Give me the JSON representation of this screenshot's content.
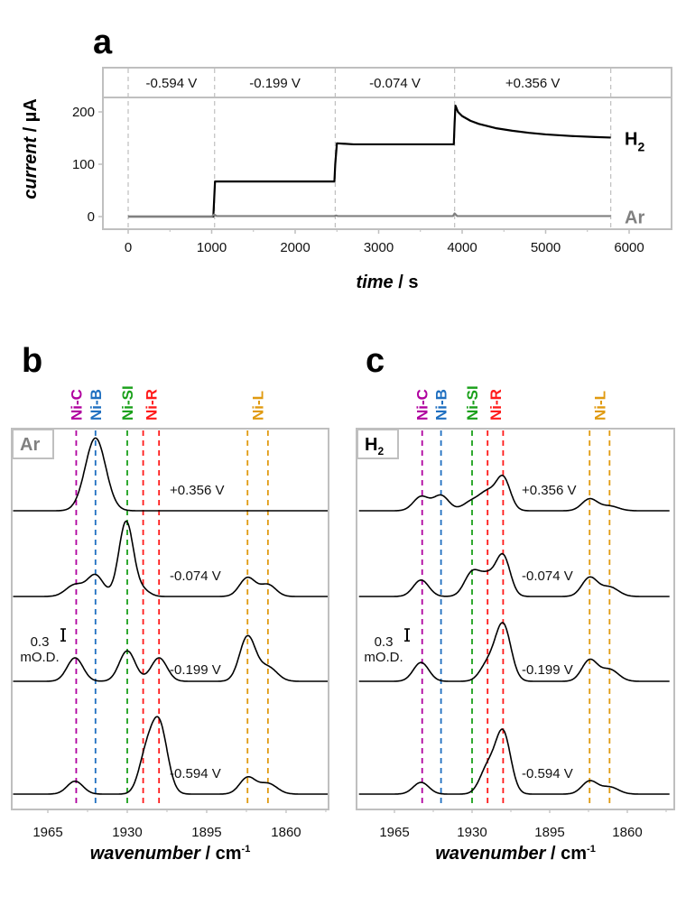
{
  "chart_data": [
    {
      "panel": "a",
      "type": "line",
      "title": "",
      "xlabel": "time / s",
      "xlabel_italic_part": "time",
      "xlabel_unit": " / s",
      "ylabel": "current / µA",
      "ylabel_italic_part": "current",
      "ylabel_unit": " / µA",
      "xlim": [
        -750,
        6500
      ],
      "ylim": [
        -25,
        225
      ],
      "xticks": [
        0,
        1000,
        2000,
        3000,
        4000,
        5000,
        6000
      ],
      "yticks": [
        0,
        100,
        200
      ],
      "potential_steps": [
        {
          "label": "-0.594 V",
          "start": 0,
          "end": 1035
        },
        {
          "label": "-0.199 V",
          "start": 1035,
          "end": 2480
        },
        {
          "label": "-0.074 V",
          "start": 2480,
          "end": 3910
        },
        {
          "label": "+0.356 V",
          "start": 3910,
          "end": 5780
        }
      ],
      "step_boundaries": [
        0,
        1035,
        2480,
        3910,
        5780
      ],
      "series": [
        {
          "name": "H2",
          "label_main": "H",
          "label_sub": "2",
          "color": "#000000",
          "x": [
            0,
            1000,
            1020,
            1040,
            1200,
            2000,
            2470,
            2480,
            2500,
            2700,
            3500,
            3900,
            3910,
            3920,
            3950,
            4000,
            4100,
            4200,
            4400,
            4600,
            4800,
            5000,
            5300,
            5600,
            5780
          ],
          "y": [
            0,
            0,
            0,
            67,
            67,
            67,
            67,
            100,
            140,
            138,
            138,
            138,
            180,
            212,
            200,
            192,
            183,
            177,
            169,
            164,
            160,
            157,
            154,
            152,
            151
          ]
        },
        {
          "name": "Ar",
          "label_main": "Ar",
          "label_sub": "",
          "color": "#808080",
          "x": [
            0,
            1000,
            1030,
            1060,
            2470,
            2490,
            2510,
            3890,
            3910,
            3940,
            5780
          ],
          "y": [
            0,
            0,
            4,
            1,
            1,
            2,
            1,
            1,
            6,
            1,
            1
          ]
        }
      ]
    },
    {
      "panel": "b",
      "type": "line",
      "title": "",
      "condition_label": "Ar",
      "condition_sub": "",
      "xlabel": "wavenumber / cm-1",
      "xlabel_italic_part": "wavenumber",
      "xlabel_unit": " / cm",
      "xlabel_sup": "-1",
      "ylabel": "",
      "xlim": [
        1981,
        1841
      ],
      "xticks": [
        1965,
        1930,
        1895,
        1860
      ],
      "scale_bar": {
        "value_label": "0.3",
        "unit_label": "mO.D.",
        "value": 0.3
      },
      "band_markers": [
        {
          "label": "Ni-C",
          "color": "#b0009f",
          "positions": [
            1952.5
          ]
        },
        {
          "label": "Ni-B",
          "color": "#1f6fc0",
          "positions": [
            1944
          ]
        },
        {
          "label": "Ni-SI",
          "color": "#1aa01a",
          "positions": [
            1930
          ]
        },
        {
          "label": "Ni-R",
          "color": "#ff1a1a",
          "positions": [
            1923,
            1916
          ]
        },
        {
          "label": "Ni-L",
          "color": "#e09a10",
          "positions": [
            1877,
            1868
          ]
        }
      ],
      "series": [
        {
          "name": "+0.356 V",
          "peaks": [
            [
              1944,
              0.62,
              4.5
            ]
          ]
        },
        {
          "name": "-0.074 V",
          "peaks": [
            [
              1953,
              0.1,
              4
            ],
            [
              1944,
              0.18,
              3.5
            ],
            [
              1930.5,
              0.64,
              3.2
            ],
            [
              1923,
              0.05,
              3
            ],
            [
              1877,
              0.16,
              3.5
            ],
            [
              1868,
              0.1,
              3.5
            ]
          ]
        },
        {
          "name": "-0.199 V",
          "peaks": [
            [
              1953,
              0.2,
              3.5
            ],
            [
              1930,
              0.26,
              3.5
            ],
            [
              1916,
              0.2,
              3.5
            ],
            [
              1877,
              0.38,
              3.5
            ],
            [
              1868,
              0.12,
              4
            ]
          ]
        },
        {
          "name": "-0.594 V",
          "peaks": [
            [
              1953,
              0.11,
              3.5
            ],
            [
              1922,
              0.28,
              3.2
            ],
            [
              1916,
              0.6,
              3.6
            ],
            [
              1877,
              0.14,
              3.5
            ],
            [
              1868,
              0.09,
              4
            ]
          ]
        }
      ]
    },
    {
      "panel": "c",
      "type": "line",
      "title": "",
      "condition_label": "H",
      "condition_sub": "2",
      "xlabel": "wavenumber / cm-1",
      "xlabel_italic_part": "wavenumber",
      "xlabel_unit": " / cm",
      "xlabel_sup": "-1",
      "ylabel": "",
      "xlim": [
        1981,
        1841
      ],
      "xticks": [
        1965,
        1930,
        1895,
        1860
      ],
      "scale_bar": {
        "value_label": "0.3",
        "unit_label": "mO.D.",
        "value": 0.3
      },
      "band_markers": [
        {
          "label": "Ni-C",
          "color": "#b0009f",
          "positions": [
            1952.5
          ]
        },
        {
          "label": "Ni-B",
          "color": "#1f6fc0",
          "positions": [
            1944
          ]
        },
        {
          "label": "Ni-SI",
          "color": "#1aa01a",
          "positions": [
            1930
          ]
        },
        {
          "label": "Ni-R",
          "color": "#ff1a1a",
          "positions": [
            1923,
            1916
          ]
        },
        {
          "label": "Ni-L",
          "color": "#e09a10",
          "positions": [
            1877,
            1868
          ]
        }
      ],
      "series": [
        {
          "name": "+0.356 V",
          "peaks": [
            [
              1953,
              0.12,
              3.5
            ],
            [
              1944,
              0.13,
              3.5
            ],
            [
              1930,
              0.08,
              4
            ],
            [
              1923,
              0.14,
              3.5
            ],
            [
              1916,
              0.28,
              3.2
            ],
            [
              1877,
              0.1,
              3.5
            ],
            [
              1868,
              0.04,
              4
            ]
          ]
        },
        {
          "name": "-0.074 V",
          "peaks": [
            [
              1953,
              0.14,
              3.5
            ],
            [
              1930,
              0.2,
              3.5
            ],
            [
              1923,
              0.16,
              3.5
            ],
            [
              1916,
              0.34,
              3.2
            ],
            [
              1877,
              0.16,
              3.5
            ],
            [
              1868,
              0.08,
              4
            ]
          ]
        },
        {
          "name": "-0.199 V",
          "peaks": [
            [
              1953,
              0.16,
              3.5
            ],
            [
              1923,
              0.14,
              3.5
            ],
            [
              1916,
              0.48,
              3.5
            ],
            [
              1877,
              0.18,
              3.5
            ],
            [
              1868,
              0.1,
              4
            ]
          ]
        },
        {
          "name": "-0.594 V",
          "peaks": [
            [
              1953,
              0.1,
              3.5
            ],
            [
              1923,
              0.22,
              3.5
            ],
            [
              1916,
              0.52,
              3.4
            ],
            [
              1877,
              0.11,
              3.5
            ],
            [
              1868,
              0.06,
              4
            ]
          ]
        }
      ]
    }
  ],
  "panel_letters": {
    "a": "a",
    "b": "b",
    "c": "c"
  },
  "colors": {
    "frame": "#bfbfbf",
    "step_line": "#bfbfbf",
    "trace": "#000000",
    "ar_trace": "#808080"
  }
}
